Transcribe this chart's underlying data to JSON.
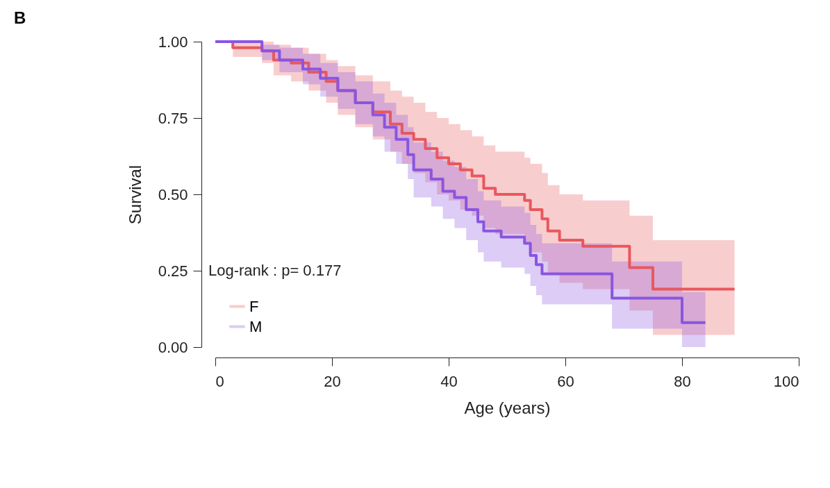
{
  "chart_data": {
    "type": "step",
    "title": "B",
    "xlabel": "Age (years)",
    "ylabel": "Survival",
    "annotations": [
      "Log-rank : p= 0.177"
    ],
    "xlim": [
      0,
      100
    ],
    "xticks": [
      0,
      20,
      40,
      60,
      80,
      100
    ],
    "ylim": [
      0,
      1
    ],
    "yticks": [
      {
        "value": 0,
        "label": "0.00"
      },
      {
        "value": 0.25,
        "label": "0.25"
      },
      {
        "value": 0.5,
        "label": "0.50"
      },
      {
        "value": 0.75,
        "label": "0.75"
      },
      {
        "value": 1,
        "label": "1.00"
      }
    ],
    "grid": false,
    "legend": "bottom left",
    "line_style": "solid",
    "series": [
      {
        "name": "F",
        "color": "#e8585e",
        "x": [
          0,
          3,
          8,
          10,
          13,
          16,
          19,
          21,
          24,
          27,
          30,
          32,
          34,
          36,
          38,
          40,
          42,
          44,
          46,
          48,
          53,
          54,
          56,
          57,
          59,
          63,
          71,
          75,
          89
        ],
        "values": [
          1,
          0.98,
          0.97,
          0.94,
          0.93,
          0.9,
          0.87,
          0.84,
          0.8,
          0.77,
          0.73,
          0.7,
          0.68,
          0.65,
          0.62,
          0.6,
          0.58,
          0.56,
          0.52,
          0.5,
          0.48,
          0.45,
          0.42,
          0.38,
          0.35,
          0.33,
          0.26,
          0.19,
          0.19
        ],
        "upper": [
          1,
          1,
          1,
          0.99,
          0.98,
          0.96,
          0.94,
          0.92,
          0.89,
          0.87,
          0.84,
          0.82,
          0.8,
          0.77,
          0.75,
          0.73,
          0.71,
          0.69,
          0.66,
          0.64,
          0.62,
          0.6,
          0.57,
          0.53,
          0.5,
          0.48,
          0.43,
          0.35,
          0.35
        ],
        "lower": [
          1,
          0.95,
          0.93,
          0.89,
          0.87,
          0.84,
          0.8,
          0.76,
          0.72,
          0.68,
          0.64,
          0.6,
          0.57,
          0.54,
          0.5,
          0.48,
          0.45,
          0.43,
          0.39,
          0.37,
          0.34,
          0.31,
          0.28,
          0.24,
          0.21,
          0.19,
          0.12,
          0.04,
          0.04
        ]
      },
      {
        "name": "M",
        "color": "#8a55e0",
        "x": [
          0,
          7,
          8,
          11,
          15,
          18,
          21,
          24,
          27,
          29,
          31,
          33,
          34,
          37,
          39,
          41,
          43,
          45,
          46,
          49,
          53,
          54,
          55,
          56,
          68,
          80,
          84
        ],
        "values": [
          1,
          1,
          0.97,
          0.94,
          0.91,
          0.88,
          0.84,
          0.8,
          0.76,
          0.72,
          0.68,
          0.63,
          0.58,
          0.55,
          0.51,
          0.49,
          0.45,
          0.41,
          0.38,
          0.36,
          0.34,
          0.3,
          0.27,
          0.24,
          0.16,
          0.08,
          0.08
        ],
        "upper": [
          1,
          1,
          0.99,
          0.98,
          0.96,
          0.93,
          0.9,
          0.87,
          0.83,
          0.8,
          0.76,
          0.72,
          0.67,
          0.64,
          0.61,
          0.59,
          0.55,
          0.51,
          0.48,
          0.46,
          0.44,
          0.4,
          0.37,
          0.34,
          0.28,
          0.18,
          0.18
        ],
        "lower": [
          1,
          1,
          0.94,
          0.9,
          0.86,
          0.82,
          0.78,
          0.73,
          0.69,
          0.64,
          0.6,
          0.55,
          0.49,
          0.46,
          0.42,
          0.39,
          0.35,
          0.31,
          0.28,
          0.26,
          0.24,
          0.2,
          0.17,
          0.14,
          0.06,
          0,
          0
        ]
      }
    ]
  }
}
